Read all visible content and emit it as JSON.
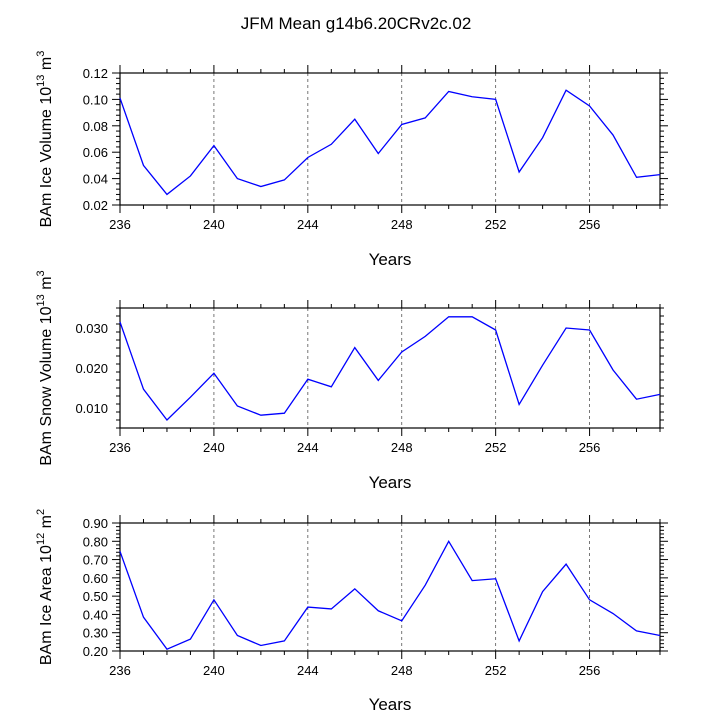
{
  "title": "JFM Mean g14b6.20CRv2c.02",
  "chart_data": [
    {
      "type": "line",
      "ylabel_main": "BAm Ice Volume 10",
      "ylabel_exp": "13",
      "ylabel_unit": "m",
      "ylabel_unit_exp": "3",
      "xlabel": "Years",
      "xlim": [
        236,
        259
      ],
      "ylim": [
        0.02,
        0.12
      ],
      "xticks": [
        236,
        240,
        244,
        248,
        252,
        256
      ],
      "xtick_labels": [
        "236",
        "240",
        "244",
        "248",
        "252",
        "256"
      ],
      "yticks": [
        0.02,
        0.04,
        0.06,
        0.08,
        0.1,
        0.12
      ],
      "ytick_labels": [
        "0.02",
        "0.04",
        "0.06",
        "0.08",
        "0.10",
        "0.12"
      ],
      "x": [
        236,
        237,
        238,
        239,
        240,
        241,
        242,
        243,
        244,
        245,
        246,
        247,
        248,
        249,
        250,
        251,
        252,
        253,
        254,
        255,
        256,
        257,
        258,
        259
      ],
      "values": [
        0.101,
        0.05,
        0.028,
        0.042,
        0.065,
        0.04,
        0.034,
        0.039,
        0.056,
        0.066,
        0.085,
        0.059,
        0.081,
        0.086,
        0.106,
        0.102,
        0.1,
        0.045,
        0.071,
        0.107,
        0.095,
        0.073,
        0.041,
        0.043
      ],
      "line_color": "#0000ff"
    },
    {
      "type": "line",
      "ylabel_main": "BAm Snow Volume 10",
      "ylabel_exp": "13",
      "ylabel_unit": "m",
      "ylabel_unit_exp": "3",
      "xlabel": "Years",
      "xlim": [
        236,
        259
      ],
      "ylim": [
        0.005,
        0.035
      ],
      "xticks": [
        236,
        240,
        244,
        248,
        252,
        256
      ],
      "xtick_labels": [
        "236",
        "240",
        "244",
        "248",
        "252",
        "256"
      ],
      "yticks": [
        0.01,
        0.02,
        0.03
      ],
      "ytick_labels": [
        "0.010",
        "0.020",
        "0.030"
      ],
      "x": [
        236,
        237,
        238,
        239,
        240,
        241,
        242,
        243,
        244,
        245,
        246,
        247,
        248,
        249,
        250,
        251,
        252,
        253,
        254,
        255,
        256,
        257,
        258,
        259
      ],
      "values": [
        0.0315,
        0.0147,
        0.007,
        0.0127,
        0.0187,
        0.0105,
        0.0082,
        0.0087,
        0.0172,
        0.0153,
        0.0251,
        0.0169,
        0.024,
        0.0279,
        0.0328,
        0.0328,
        0.0295,
        0.0109,
        0.0207,
        0.03,
        0.0295,
        0.0195,
        0.0122,
        0.0134
      ],
      "line_color": "#0000ff"
    },
    {
      "type": "line",
      "ylabel_main": "BAm Ice Area 10",
      "ylabel_exp": "12",
      "ylabel_unit": "m",
      "ylabel_unit_exp": "2",
      "xlabel": "Years",
      "xlim": [
        236,
        259
      ],
      "ylim": [
        0.2,
        0.9
      ],
      "xticks": [
        236,
        240,
        244,
        248,
        252,
        256
      ],
      "xtick_labels": [
        "236",
        "240",
        "244",
        "248",
        "252",
        "256"
      ],
      "yticks": [
        0.2,
        0.3,
        0.4,
        0.5,
        0.6,
        0.7,
        0.8,
        0.9
      ],
      "ytick_labels": [
        "0.20",
        "0.30",
        "0.40",
        "0.50",
        "0.60",
        "0.70",
        "0.80",
        "0.90"
      ],
      "x": [
        236,
        237,
        238,
        239,
        240,
        241,
        242,
        243,
        244,
        245,
        246,
        247,
        248,
        249,
        250,
        251,
        252,
        253,
        254,
        255,
        256,
        257,
        258,
        259
      ],
      "values": [
        0.745,
        0.385,
        0.21,
        0.265,
        0.48,
        0.285,
        0.23,
        0.255,
        0.44,
        0.43,
        0.54,
        0.42,
        0.365,
        0.56,
        0.8,
        0.585,
        0.595,
        0.255,
        0.525,
        0.675,
        0.48,
        0.405,
        0.31,
        0.285
      ],
      "line_color": "#0000ff"
    }
  ]
}
